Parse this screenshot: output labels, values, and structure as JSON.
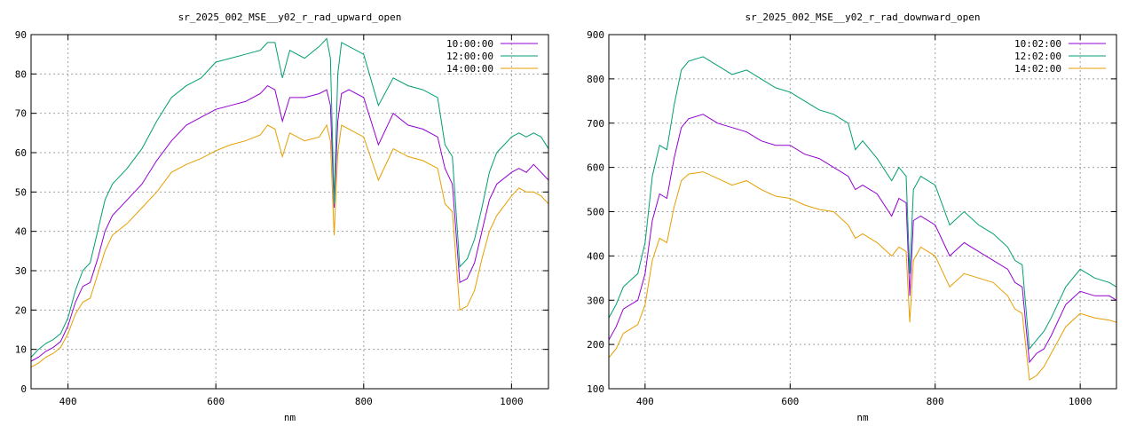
{
  "chart_data": [
    {
      "type": "line",
      "title": "sr_2025_002_MSE__y02_r_rad_upward_open",
      "xlabel": "nm",
      "ylabel": "",
      "xlim": [
        350,
        1050
      ],
      "ylim": [
        0,
        90
      ],
      "xticks": [
        400,
        600,
        800,
        1000
      ],
      "yticks": [
        0,
        10,
        20,
        30,
        40,
        50,
        60,
        70,
        80,
        90
      ],
      "grid": true,
      "legend": "top-right",
      "series": [
        {
          "name": "10:00:00",
          "color": "#9400d3",
          "x": [
            350,
            360,
            370,
            380,
            390,
            400,
            410,
            420,
            430,
            440,
            450,
            460,
            480,
            500,
            520,
            540,
            560,
            580,
            600,
            620,
            640,
            660,
            670,
            680,
            690,
            700,
            720,
            740,
            750,
            755,
            760,
            765,
            770,
            780,
            800,
            820,
            840,
            860,
            880,
            900,
            910,
            920,
            930,
            940,
            950,
            960,
            970,
            980,
            1000,
            1010,
            1020,
            1030,
            1040,
            1050
          ],
          "y": [
            7,
            8,
            9.5,
            10.5,
            12,
            16,
            22,
            26,
            27,
            33,
            40,
            44,
            48,
            52,
            58,
            63,
            67,
            69,
            71,
            72,
            73,
            75,
            77,
            76,
            68,
            74,
            74,
            75,
            76,
            72,
            46,
            68,
            75,
            76,
            74,
            62,
            70,
            67,
            66,
            64,
            56,
            52,
            27,
            28,
            32,
            40,
            48,
            52,
            55,
            56,
            55,
            57,
            55,
            53
          ]
        },
        {
          "name": "12:00:00",
          "color": "#009e73",
          "x": [
            350,
            360,
            370,
            380,
            390,
            400,
            410,
            420,
            430,
            440,
            450,
            460,
            480,
            500,
            520,
            540,
            560,
            580,
            600,
            620,
            640,
            660,
            670,
            680,
            690,
            700,
            720,
            740,
            750,
            755,
            760,
            765,
            770,
            780,
            800,
            820,
            840,
            860,
            880,
            900,
            910,
            920,
            930,
            940,
            950,
            960,
            970,
            980,
            1000,
            1010,
            1020,
            1030,
            1040,
            1050
          ],
          "y": [
            8,
            10,
            11.5,
            12.5,
            14,
            18,
            25,
            30,
            32,
            40,
            48,
            52,
            56,
            61,
            68,
            74,
            77,
            79,
            83,
            84,
            85,
            86,
            88,
            88,
            79,
            86,
            84,
            87,
            89,
            84,
            47,
            80,
            88,
            87,
            85,
            72,
            79,
            77,
            76,
            74,
            62,
            59,
            31,
            33,
            38,
            46,
            55,
            60,
            64,
            65,
            64,
            65,
            64,
            61
          ]
        },
        {
          "name": "14:00:00",
          "color": "#e69f00",
          "x": [
            350,
            360,
            370,
            380,
            390,
            400,
            410,
            420,
            430,
            440,
            450,
            460,
            480,
            500,
            520,
            540,
            560,
            580,
            600,
            620,
            640,
            660,
            670,
            680,
            690,
            700,
            720,
            740,
            750,
            755,
            760,
            765,
            770,
            780,
            800,
            820,
            840,
            860,
            880,
            900,
            910,
            920,
            930,
            940,
            950,
            960,
            970,
            980,
            1000,
            1010,
            1020,
            1030,
            1040,
            1050
          ],
          "y": [
            5.5,
            6.5,
            8,
            9,
            10.5,
            14,
            19,
            22,
            23,
            29,
            35,
            39,
            42,
            46,
            50,
            55,
            57,
            58.5,
            60.5,
            62,
            63,
            64.5,
            67,
            66,
            59,
            65,
            63,
            64,
            67,
            63,
            39,
            60,
            67,
            66,
            64,
            53,
            61,
            59,
            58,
            56,
            47,
            45,
            20,
            21,
            25,
            33,
            40,
            44,
            49,
            51,
            50,
            50,
            49,
            47
          ]
        }
      ]
    },
    {
      "type": "line",
      "title": "sr_2025_002_MSE__y02_r_rad_downward_open",
      "xlabel": "nm",
      "ylabel": "",
      "xlim": [
        350,
        1050
      ],
      "ylim": [
        100,
        900
      ],
      "xticks": [
        400,
        600,
        800,
        1000
      ],
      "yticks": [
        100,
        200,
        300,
        400,
        500,
        600,
        700,
        800,
        900
      ],
      "grid": true,
      "legend": "top-right",
      "series": [
        {
          "name": "10:02:00",
          "color": "#9400d3",
          "x": [
            350,
            360,
            370,
            380,
            390,
            400,
            410,
            420,
            430,
            440,
            450,
            460,
            480,
            500,
            520,
            540,
            560,
            580,
            600,
            620,
            640,
            660,
            680,
            690,
            700,
            720,
            740,
            750,
            760,
            765,
            770,
            780,
            800,
            820,
            840,
            860,
            880,
            900,
            910,
            920,
            930,
            940,
            950,
            960,
            980,
            1000,
            1020,
            1040,
            1050
          ],
          "y": [
            210,
            240,
            280,
            290,
            300,
            360,
            480,
            540,
            530,
            620,
            690,
            710,
            720,
            700,
            690,
            680,
            660,
            650,
            650,
            630,
            620,
            600,
            580,
            550,
            560,
            540,
            490,
            530,
            520,
            310,
            480,
            490,
            470,
            400,
            430,
            410,
            390,
            370,
            340,
            330,
            160,
            180,
            190,
            220,
            290,
            320,
            310,
            310,
            300
          ]
        },
        {
          "name": "12:02:00",
          "color": "#009e73",
          "x": [
            350,
            360,
            370,
            380,
            390,
            400,
            410,
            420,
            430,
            440,
            450,
            460,
            480,
            500,
            520,
            540,
            560,
            580,
            600,
            620,
            640,
            660,
            680,
            690,
            700,
            720,
            740,
            750,
            760,
            765,
            770,
            780,
            800,
            820,
            840,
            860,
            880,
            900,
            910,
            920,
            930,
            940,
            950,
            960,
            980,
            1000,
            1020,
            1040,
            1050
          ],
          "y": [
            260,
            290,
            330,
            345,
            360,
            430,
            580,
            650,
            640,
            740,
            820,
            840,
            850,
            830,
            810,
            820,
            800,
            780,
            770,
            750,
            730,
            720,
            700,
            640,
            660,
            620,
            570,
            600,
            580,
            360,
            550,
            580,
            560,
            470,
            500,
            470,
            450,
            420,
            390,
            380,
            190,
            210,
            230,
            260,
            330,
            370,
            350,
            340,
            330
          ]
        },
        {
          "name": "14:02:00",
          "color": "#e69f00",
          "x": [
            350,
            360,
            370,
            380,
            390,
            400,
            410,
            420,
            430,
            440,
            450,
            460,
            480,
            500,
            520,
            540,
            560,
            580,
            600,
            620,
            640,
            660,
            680,
            690,
            700,
            720,
            740,
            750,
            760,
            765,
            770,
            780,
            800,
            820,
            840,
            860,
            880,
            900,
            910,
            920,
            930,
            940,
            950,
            960,
            980,
            1000,
            1020,
            1040,
            1050
          ],
          "y": [
            170,
            190,
            225,
            235,
            245,
            290,
            390,
            440,
            430,
            510,
            570,
            585,
            590,
            575,
            560,
            570,
            550,
            535,
            530,
            515,
            505,
            500,
            470,
            440,
            450,
            430,
            400,
            420,
            410,
            250,
            390,
            420,
            400,
            330,
            360,
            350,
            340,
            310,
            280,
            270,
            120,
            130,
            150,
            180,
            240,
            270,
            260,
            255,
            250
          ]
        }
      ]
    }
  ]
}
